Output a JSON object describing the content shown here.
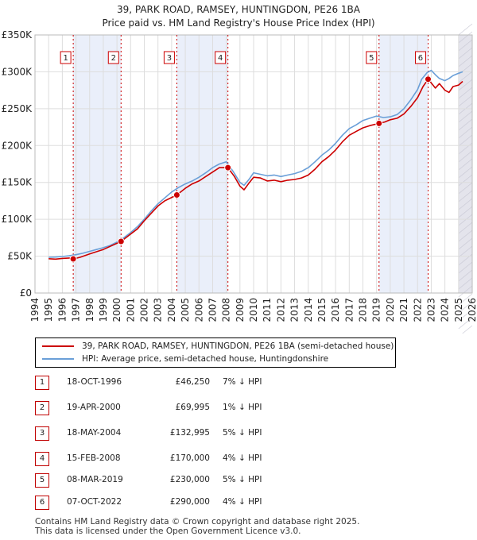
{
  "header": {
    "title": "39, PARK ROAD, RAMSEY, HUNTINGDON, PE26 1BA",
    "subtitle": "Price paid vs. HM Land Registry's House Price Index (HPI)"
  },
  "chart_data": {
    "type": "line",
    "title": "39, PARK ROAD, RAMSEY, HUNTINGDON, PE26 1BA",
    "subtitle": "Price paid vs. HM Land Registry's House Price Index (HPI)",
    "xlabel": "",
    "ylabel": "",
    "xlim": [
      1994,
      2026
    ],
    "ylim": [
      0,
      350000
    ],
    "x_ticks": [
      "1994",
      "1995",
      "1996",
      "1997",
      "1998",
      "1999",
      "2000",
      "2001",
      "2002",
      "2003",
      "2004",
      "2005",
      "2006",
      "2007",
      "2008",
      "2009",
      "2010",
      "2011",
      "2012",
      "2013",
      "2014",
      "2015",
      "2016",
      "2017",
      "2018",
      "2019",
      "2020",
      "2021",
      "2022",
      "2023",
      "2024",
      "2025",
      "2026"
    ],
    "y_ticks": [
      {
        "value": 0,
        "label": "£0"
      },
      {
        "value": 50000,
        "label": "£50K"
      },
      {
        "value": 100000,
        "label": "£100K"
      },
      {
        "value": 150000,
        "label": "£150K"
      },
      {
        "value": 200000,
        "label": "£200K"
      },
      {
        "value": 250000,
        "label": "£250K"
      },
      {
        "value": 300000,
        "label": "£300K"
      },
      {
        "value": 350000,
        "label": "£350K"
      }
    ],
    "grid": true,
    "data_start": 1995,
    "data_end": 2025.3,
    "shaded_periods": [
      [
        1996.8,
        2000.3
      ],
      [
        2004.38,
        2008.12
      ],
      [
        2019.18,
        2022.77
      ],
      [
        2025.0,
        2026.0
      ]
    ],
    "series": [
      {
        "name": "39, PARK ROAD, RAMSEY, HUNTINGDON, PE26 1BA (semi-detached house)",
        "color": "#cc0000",
        "x": [
          1995,
          1995.5,
          1996,
          1996.5,
          1996.8,
          1997.3,
          1998,
          1999,
          2000.3,
          2001,
          2001.5,
          2002,
          2002.5,
          2003,
          2003.5,
          2004.38,
          2005,
          2005.5,
          2006,
          2006.5,
          2007,
          2007.5,
          2008.12,
          2008.6,
          2009,
          2009.3,
          2009.7,
          2010,
          2010.5,
          2011,
          2011.5,
          2012,
          2012.5,
          2013,
          2013.5,
          2014,
          2014.5,
          2015,
          2015.5,
          2016,
          2016.5,
          2017,
          2017.5,
          2018,
          2018.5,
          2019.18,
          2019.6,
          2020,
          2020.5,
          2021,
          2021.5,
          2022,
          2022.4,
          2022.77,
          2023,
          2023.3,
          2023.6,
          2024,
          2024.3,
          2024.6,
          2025,
          2025.3
        ],
        "values": [
          46500,
          46000,
          47000,
          47500,
          46250,
          48500,
          53000,
          59000,
          69995,
          80000,
          87000,
          98000,
          108000,
          118000,
          125000,
          132995,
          142000,
          148000,
          152000,
          158000,
          164000,
          170000,
          170000,
          158000,
          145000,
          140000,
          150000,
          157000,
          156000,
          152000,
          153000,
          151000,
          153000,
          154000,
          156000,
          160000,
          168000,
          178000,
          185000,
          194000,
          205000,
          214000,
          219000,
          224000,
          227000,
          230000,
          232000,
          235000,
          237000,
          243000,
          253000,
          265000,
          280000,
          290000,
          285000,
          278000,
          284000,
          275000,
          272000,
          280000,
          282000,
          287000
        ]
      },
      {
        "name": "HPI: Average price, semi-detached house, Huntingdonshire",
        "color": "#6a9fd8",
        "x": [
          1995,
          1995.5,
          1996,
          1996.5,
          1997,
          1997.5,
          1998,
          1998.5,
          1999,
          1999.5,
          2000,
          2000.5,
          2001,
          2001.5,
          2002,
          2002.5,
          2003,
          2003.5,
          2004,
          2004.5,
          2005,
          2005.5,
          2006,
          2006.5,
          2007,
          2007.5,
          2008,
          2008.5,
          2009,
          2009.3,
          2009.7,
          2010,
          2010.5,
          2011,
          2011.5,
          2012,
          2012.5,
          2013,
          2013.5,
          2014,
          2014.5,
          2015,
          2015.5,
          2016,
          2016.5,
          2017,
          2017.5,
          2018,
          2018.5,
          2019,
          2019.5,
          2020,
          2020.5,
          2021,
          2021.5,
          2022,
          2022.3,
          2022.7,
          2023,
          2023.3,
          2023.6,
          2024,
          2024.3,
          2024.6,
          2025,
          2025.3
        ],
        "values": [
          48500,
          48800,
          49500,
          50500,
          52000,
          54000,
          56500,
          59000,
          61500,
          64500,
          69000,
          75000,
          82000,
          90000,
          100000,
          111000,
          121000,
          129000,
          137000,
          143000,
          148000,
          152000,
          157000,
          163000,
          170000,
          175000,
          178000,
          165000,
          150000,
          146000,
          155000,
          163000,
          161000,
          159000,
          160000,
          158000,
          160000,
          162000,
          165000,
          170000,
          178000,
          187000,
          194000,
          203000,
          214000,
          223000,
          228000,
          234000,
          237000,
          240000,
          238000,
          239000,
          242000,
          250000,
          262000,
          276000,
          290000,
          299000,
          302000,
          296000,
          291000,
          288000,
          291000,
          295000,
          298000,
          300000
        ]
      }
    ],
    "annotations": [
      {
        "label": "1",
        "x": 1996.8,
        "y": 46250
      },
      {
        "label": "2",
        "x": 2000.3,
        "y": 69995
      },
      {
        "label": "3",
        "x": 2004.38,
        "y": 132995
      },
      {
        "label": "4",
        "x": 2008.12,
        "y": 170000
      },
      {
        "label": "5",
        "x": 2019.18,
        "y": 230000
      },
      {
        "label": "6",
        "x": 2022.77,
        "y": 290000
      }
    ]
  },
  "legend": {
    "items": [
      {
        "label": "39, PARK ROAD, RAMSEY, HUNTINGDON, PE26 1BA (semi-detached house)",
        "color": "#cc0000"
      },
      {
        "label": "HPI: Average price, semi-detached house, Huntingdonshire",
        "color": "#6a9fd8"
      }
    ]
  },
  "transactions": [
    {
      "num": "1",
      "date": "18-OCT-1996",
      "price": "£46,250",
      "hpi": "7% ↓ HPI"
    },
    {
      "num": "2",
      "date": "19-APR-2000",
      "price": "£69,995",
      "hpi": "1% ↓ HPI"
    },
    {
      "num": "3",
      "date": "18-MAY-2004",
      "price": "£132,995",
      "hpi": "5% ↓ HPI"
    },
    {
      "num": "4",
      "date": "15-FEB-2008",
      "price": "£170,000",
      "hpi": "4% ↓ HPI"
    },
    {
      "num": "5",
      "date": "08-MAR-2019",
      "price": "£230,000",
      "hpi": "5% ↓ HPI"
    },
    {
      "num": "6",
      "date": "07-OCT-2022",
      "price": "£290,000",
      "hpi": "4% ↓ HPI"
    }
  ],
  "footer": {
    "line1": "Contains HM Land Registry data © Crown copyright and database right 2025.",
    "line2": "This data is licensed under the Open Government Licence v3.0."
  }
}
